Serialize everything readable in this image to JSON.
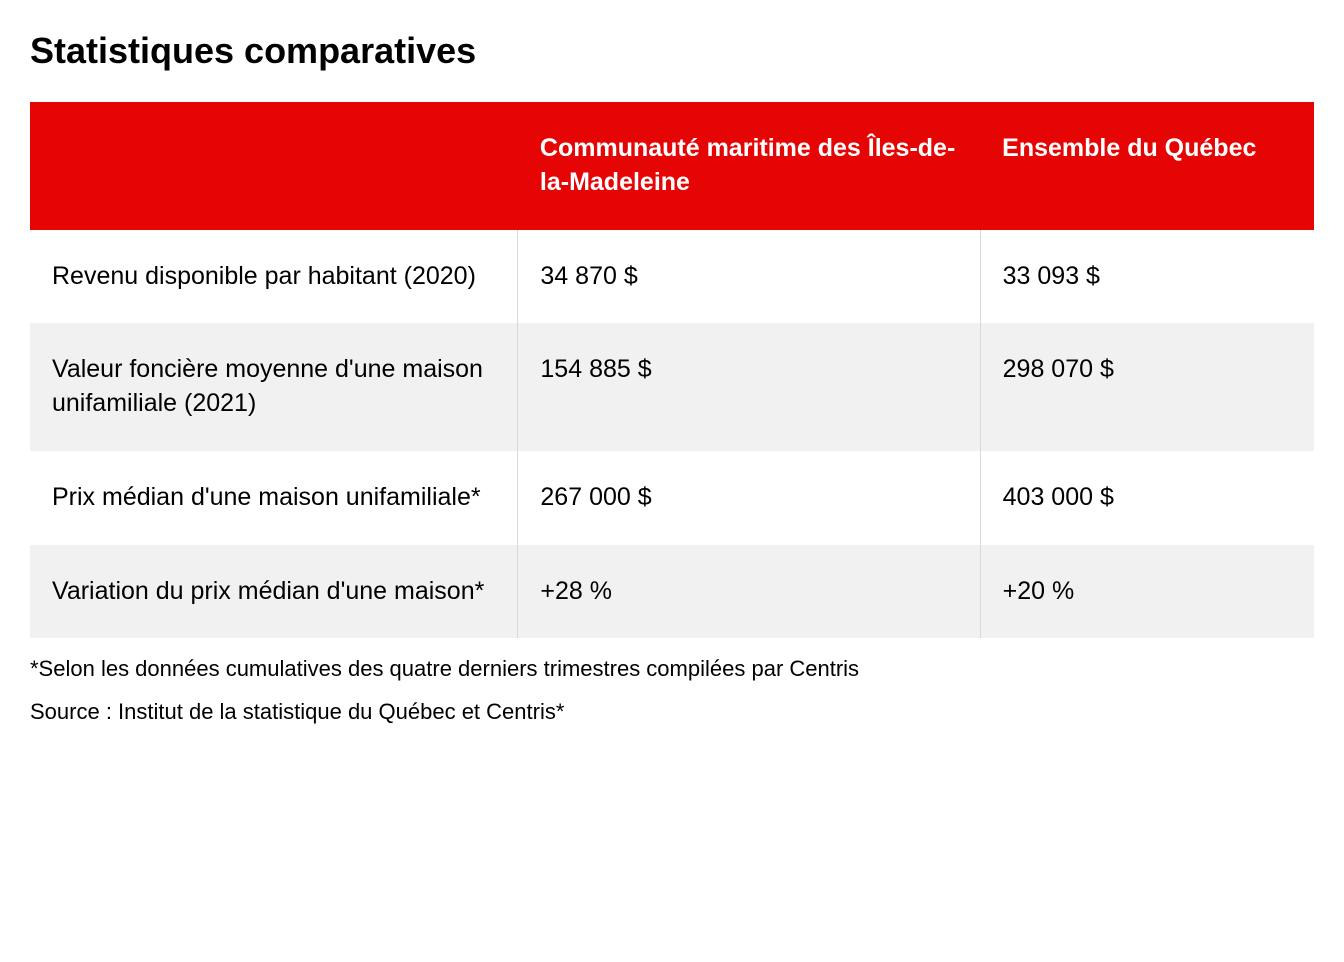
{
  "title": "Statistiques comparatives",
  "table": {
    "type": "table",
    "header_bg_color": "#e60505",
    "header_text_color": "#ffffff",
    "row_alt_bg_color": "#f1f1f1",
    "row_bg_color": "#ffffff",
    "border_color": "#d9d9d9",
    "header_fontsize": 25,
    "cell_fontsize": 25,
    "columns": [
      {
        "label": "",
        "width_pct": 38
      },
      {
        "label": "Communauté maritime des Îles-de-la-Madeleine",
        "width_pct": 36
      },
      {
        "label": "Ensemble du Québec",
        "width_pct": 26
      }
    ],
    "rows": [
      {
        "label": "Revenu disponible par habitant (2020)",
        "col1": "34 870 $",
        "col2": "33 093 $"
      },
      {
        "label": "Valeur foncière moyenne d'une maison unifamiliale (2021)",
        "col1": "154 885 $",
        "col2": "298 070 $"
      },
      {
        "label": "Prix médian d'une maison unifamiliale*",
        "col1": "267 000 $",
        "col2": "403 000 $"
      },
      {
        "label": "Variation du prix médian d'une maison*",
        "col1": "+28 %",
        "col2": "+20 %"
      }
    ]
  },
  "footnote": "*Selon les données cumulatives des quatre derniers trimestres compilées par Centris",
  "source": "Source : Institut de la statistique du Québec et Centris*"
}
